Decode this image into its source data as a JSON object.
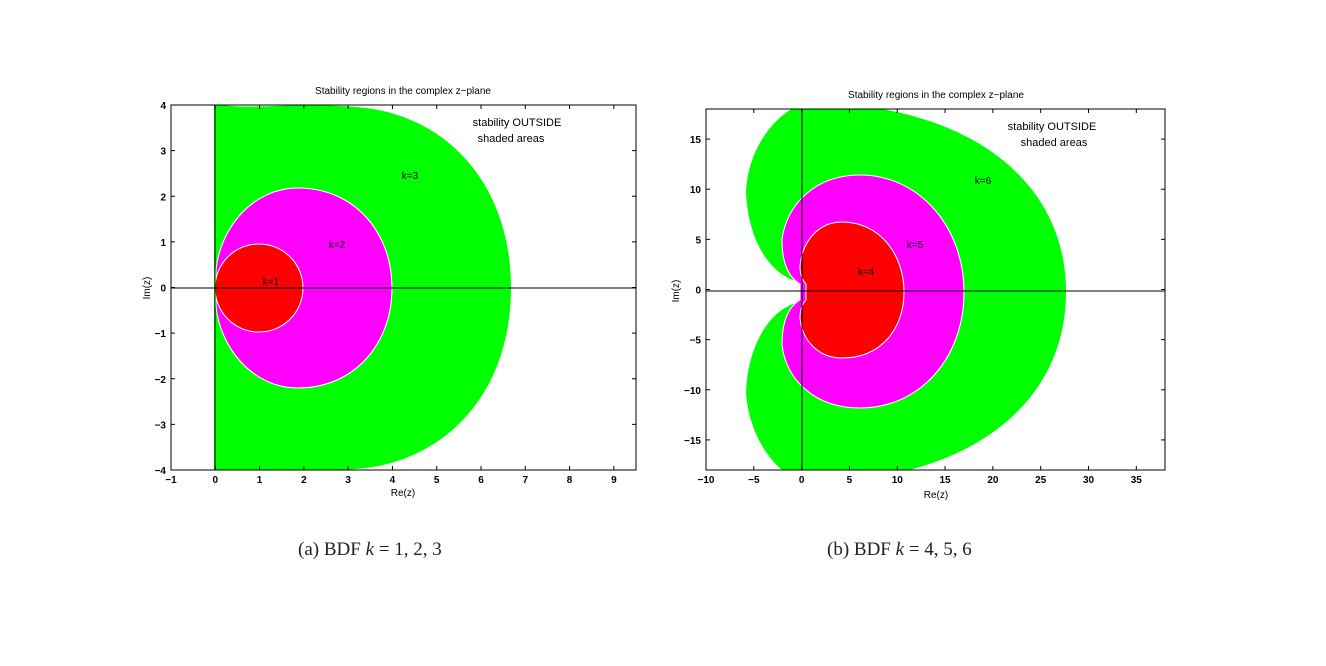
{
  "chart_data": [
    {
      "type": "area",
      "title": "Stability regions in the complex z−plane",
      "xlabel": "Re(z)",
      "ylabel": "Im(z)",
      "xlim": [
        -1,
        9.5
      ],
      "ylim": [
        -4,
        4
      ],
      "xticks": [
        -1,
        0,
        1,
        2,
        3,
        4,
        5,
        6,
        7,
        8,
        9
      ],
      "yticks": [
        -4,
        -3,
        -2,
        -1,
        0,
        1,
        2,
        3,
        4
      ],
      "annotation_lines": [
        "stability OUTSIDE",
        "shaded areas"
      ],
      "grid": false,
      "regions": [
        {
          "k": 3,
          "label": "k=3",
          "color": "#00ff00",
          "re_range": [
            0,
            6.6
          ],
          "im_range": [
            -3.9,
            3.9
          ]
        },
        {
          "k": 2,
          "label": "k=2",
          "color": "#ff00ff",
          "re_range": [
            0,
            4
          ],
          "im_range": [
            -2.2,
            2.2
          ]
        },
        {
          "k": 1,
          "label": "k=1",
          "color": "#ff0000",
          "re_range": [
            0,
            2
          ],
          "im_range": [
            -1,
            1
          ]
        }
      ],
      "caption": {
        "prefix": "(a) BDF ",
        "var": "k",
        "rest": " = 1, 2, 3"
      }
    },
    {
      "type": "area",
      "title": "Stability regions in the complex z−plane",
      "xlabel": "Re(z)",
      "ylabel": "Im(z)",
      "xlim": [
        -10,
        38
      ],
      "ylim": [
        -18,
        18
      ],
      "xticks": [
        -10,
        -5,
        0,
        5,
        10,
        15,
        20,
        25,
        30,
        35
      ],
      "yticks": [
        -15,
        -10,
        -5,
        0,
        5,
        10,
        15
      ],
      "annotation_lines": [
        "stability OUTSIDE",
        "shaded areas"
      ],
      "grid": false,
      "regions": [
        {
          "k": 6,
          "label": "k=6",
          "color": "#00ff00",
          "re_range": [
            -6,
            27.5
          ],
          "im_range": [
            -18,
            18
          ]
        },
        {
          "k": 5,
          "label": "k=5",
          "color": "#ff00ff",
          "re_range": [
            -2,
            17
          ],
          "im_range": [
            -11.5,
            11.5
          ]
        },
        {
          "k": 4,
          "label": "k=4",
          "color": "#ff0000",
          "re_range": [
            -0.5,
            10.5
          ],
          "im_range": [
            -6.8,
            6.8
          ]
        }
      ],
      "caption": {
        "prefix": "(b) BDF ",
        "var": "k",
        "rest": " = 4, 5, 6"
      }
    }
  ]
}
